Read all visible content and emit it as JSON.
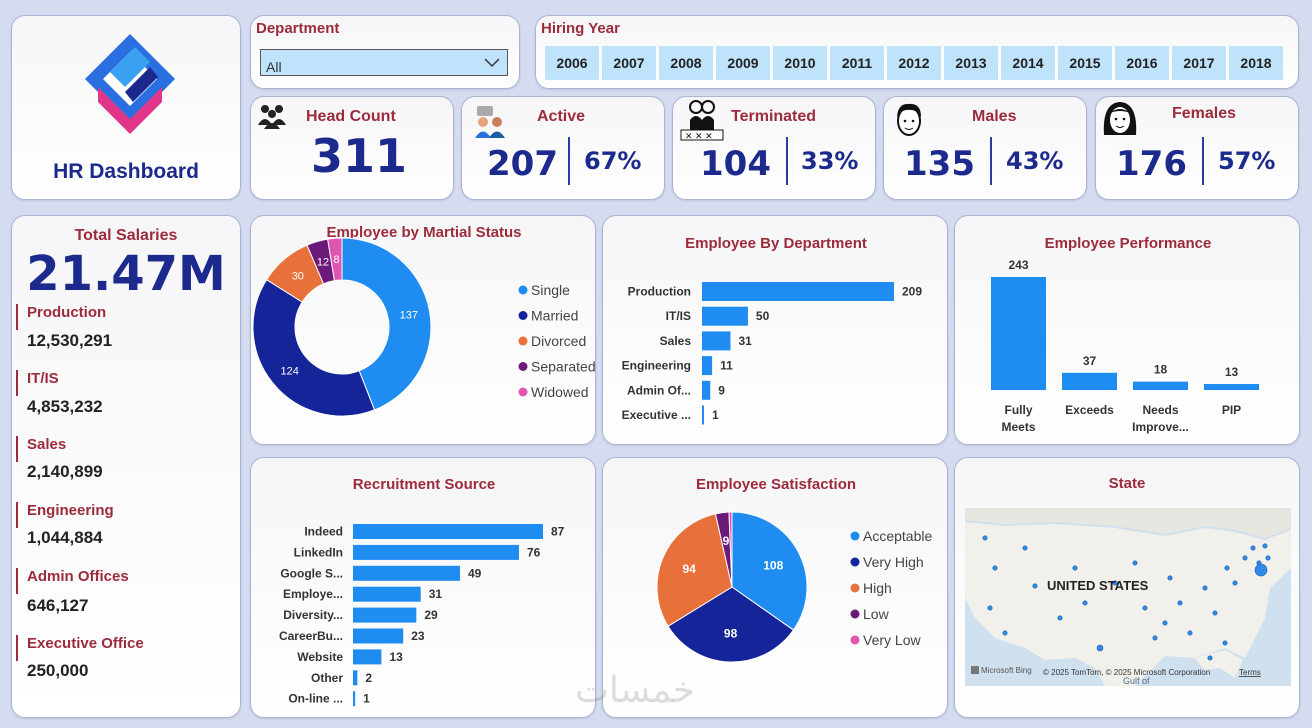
{
  "logo": {
    "title": "HR Dashboard"
  },
  "filters": {
    "department_label": "Department",
    "department_value": "All",
    "hiring_year_label": "Hiring Year",
    "years": [
      "2006",
      "2007",
      "2008",
      "2009",
      "2010",
      "2011",
      "2012",
      "2013",
      "2014",
      "2015",
      "2016",
      "2017",
      "2018"
    ]
  },
  "kpis": {
    "head_count": {
      "label": "Head Count",
      "value": "311"
    },
    "active": {
      "label": "Active",
      "value": "207",
      "pct": "67%"
    },
    "terminated": {
      "label": "Terminated",
      "value": "104",
      "pct": "33%"
    },
    "males": {
      "label": "Males",
      "value": "135",
      "pct": "43%"
    },
    "females": {
      "label": "Females",
      "value": "176",
      "pct": "57%"
    }
  },
  "salaries": {
    "label": "Total Salaries",
    "total": "21.47M",
    "departments": [
      {
        "name": "Production",
        "value": "12,530,291"
      },
      {
        "name": "IT/IS",
        "value": "4,853,232"
      },
      {
        "name": "Sales",
        "value": "2,140,899"
      },
      {
        "name": "Engineering",
        "value": "1,044,884"
      },
      {
        "name": "Admin Offices",
        "value": "646,127"
      },
      {
        "name": "Executive Office",
        "value": "250,000"
      }
    ]
  },
  "map": {
    "title": "State",
    "country_label": "UNITED STATES",
    "gulf_label": "Gulf of",
    "attribution": "© 2025 TomTom, © 2025 Microsoft Corporation",
    "terms": "Terms",
    "bing": "Microsoft Bing"
  },
  "watermark": "خمسات",
  "colors": {
    "maroon": "#9c2b3b",
    "navy": "#1b2a8c",
    "bar_blue": "#1e8cf0"
  },
  "chart_data": [
    {
      "id": "marital",
      "type": "pie",
      "donut": true,
      "title": "Employee by Martial Status",
      "categories": [
        "Single",
        "Married",
        "Divorced",
        "Separated",
        "Widowed"
      ],
      "values": [
        137,
        124,
        30,
        12,
        8
      ],
      "colors": [
        "#1e8cf0",
        "#16249a",
        "#e8703a",
        "#6b1a7a",
        "#e055b0"
      ]
    },
    {
      "id": "department",
      "type": "bar",
      "orientation": "horizontal",
      "title": "Employee By Department",
      "categories": [
        "Production",
        "IT/IS",
        "Sales",
        "Engineering",
        "Admin Of...",
        "Executive ..."
      ],
      "values": [
        209,
        50,
        31,
        11,
        9,
        1
      ]
    },
    {
      "id": "performance",
      "type": "bar",
      "orientation": "vertical",
      "title": "Employee Performance",
      "categories": [
        "Fully Meets",
        "Exceeds",
        "Needs Improve...",
        "PIP"
      ],
      "values": [
        243,
        37,
        18,
        13
      ]
    },
    {
      "id": "recruitment",
      "type": "bar",
      "orientation": "horizontal",
      "title": "Recruitment Source",
      "categories": [
        "Indeed",
        "LinkedIn",
        "Google S...",
        "Employe...",
        "Diversity...",
        "CareerBu...",
        "Website",
        "Other",
        "On-line ..."
      ],
      "values": [
        87,
        76,
        49,
        31,
        29,
        23,
        13,
        2,
        1
      ]
    },
    {
      "id": "satisfaction",
      "type": "pie",
      "donut": false,
      "title": "Employee Satisfaction",
      "categories": [
        "Acceptable",
        "Very High",
        "High",
        "Low",
        "Very Low"
      ],
      "values": [
        108,
        98,
        94,
        9,
        2
      ],
      "colors": [
        "#1e8cf0",
        "#16249a",
        "#e8703a",
        "#6b1a7a",
        "#e055b0"
      ]
    }
  ]
}
